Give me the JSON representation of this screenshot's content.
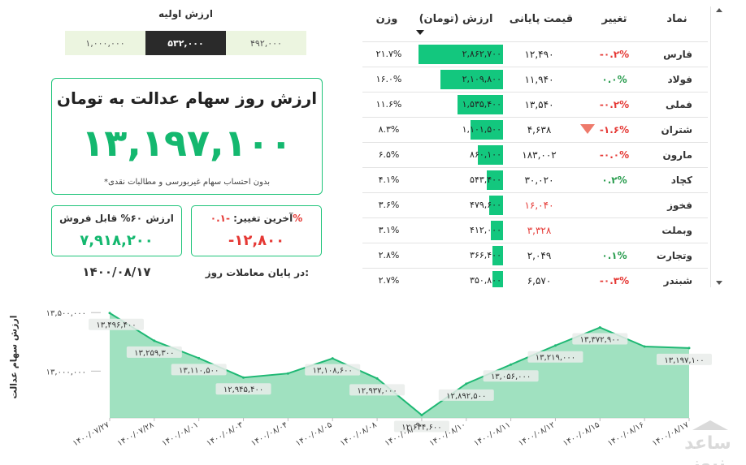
{
  "table": {
    "headers": {
      "symbol": "نماد",
      "change": "تغییر",
      "price": "قیمت پایانی",
      "value": "ارزش (تومان)",
      "weight": "وزن"
    },
    "rows": [
      {
        "symbol": "فارس",
        "change": "-۰.۲%",
        "change_dir": "neg",
        "price": "۱۲,۴۹۰",
        "price_dir": "",
        "value": "۲,۸۶۲,۷۰۰",
        "value_num": 2862700,
        "weight": "۲۱.۷%"
      },
      {
        "symbol": "فولاد",
        "change": "۰.۰%",
        "change_dir": "pos",
        "price": "۱۱,۹۴۰",
        "price_dir": "",
        "value": "۲,۱۰۹,۸۰۰",
        "value_num": 2109800,
        "weight": "۱۶.۰%"
      },
      {
        "symbol": "فملی",
        "change": "-۰.۲%",
        "change_dir": "neg",
        "price": "۱۳,۵۴۰",
        "price_dir": "",
        "value": "۱,۵۳۵,۴۰۰",
        "value_num": 1535400,
        "weight": "۱۱.۶%"
      },
      {
        "symbol": "شتران",
        "change": "-۱.۶%",
        "change_dir": "neg",
        "price": "۴,۶۳۸",
        "price_dir": "",
        "value": "۱,۱۰۱,۵۰۰",
        "value_num": 1101500,
        "weight": "۸.۳%",
        "marker": "down"
      },
      {
        "symbol": "مارون",
        "change": "-۰.۰%",
        "change_dir": "neg",
        "price": "۱۸۳,۰۰۲",
        "price_dir": "",
        "value": "۸۶۰,۱۰۰",
        "value_num": 860100,
        "weight": "۶.۵%"
      },
      {
        "symbol": "کچاد",
        "change": "۰.۲%",
        "change_dir": "pos",
        "price": "۳۰,۰۲۰",
        "price_dir": "",
        "value": "۵۴۳,۴۰۰",
        "value_num": 543400,
        "weight": "۴.۱%"
      },
      {
        "symbol": "فخوز",
        "change": "",
        "change_dir": "",
        "price": "۱۶,۰۴۰",
        "price_dir": "neg",
        "value": "۴۷۹,۶۰۰",
        "value_num": 479600,
        "weight": "۳.۶%"
      },
      {
        "symbol": "وبملت",
        "change": "",
        "change_dir": "",
        "price": "۳,۳۲۸",
        "price_dir": "neg",
        "value": "۴۱۲,۰۰۰",
        "value_num": 412000,
        "weight": "۳.۱%"
      },
      {
        "symbol": "وتجارت",
        "change": "۰.۱%",
        "change_dir": "pos",
        "price": "۲,۰۴۹",
        "price_dir": "",
        "value": "۳۶۶,۴۰۰",
        "value_num": 366400,
        "weight": "۲.۸%"
      },
      {
        "symbol": "شبندر",
        "change": "-۰.۳%",
        "change_dir": "neg",
        "price": "۶,۵۷۰",
        "price_dir": "",
        "value": "۳۵۰,۸۰۰",
        "value_num": 350800,
        "weight": "۲.۷%"
      }
    ]
  },
  "initial": {
    "title": "ارزش اولیه",
    "options": [
      "۱,۰۰۰,۰۰۰",
      "۵۳۲,۰۰۰",
      "۴۹۲,۰۰۰"
    ],
    "selected_index": 1
  },
  "summary": {
    "title": "ارزش روز سهام عدالت به تومان",
    "value": "۱۳,۱۹۷,۱۰۰",
    "note": "*بدون احتساب سهام غیربورسی و مطالبات نقدی",
    "sellable_label": "ارزش ۶۰% قابل فروش",
    "sellable_value": "۷,۹۱۸,۲۰۰",
    "last_change_label": "آخرین تغییر:",
    "last_change_pct": "-۰.۱%",
    "last_change_value": "-۱۲,۸۰۰",
    "date_label": "در پایان معاملات روز:",
    "date_value": "۱۴۰۰/۰۸/۱۷"
  },
  "chart_data": {
    "type": "area",
    "ylabel": "ارزش سهام عدالت",
    "ylim": [
      12600000,
      13550000
    ],
    "yticks": [
      13500000,
      13000000
    ],
    "ytick_labels": [
      "۱۳,۵۰۰,۰۰۰",
      "۱۳,۰۰۰,۰۰۰"
    ],
    "x": [
      "۱۴۰۰/۰۷/۲۷",
      "۱۴۰۰/۰۷/۲۸",
      "۱۴۰۰/۰۸/۰۱",
      "۱۴۰۰/۰۸/۰۳",
      "۱۴۰۰/۰۸/۰۴",
      "۱۴۰۰/۰۸/۰۵",
      "۱۴۰۰/۰۸/۰۸",
      "۱۴۰۰/۰۸/۰۹",
      "۱۴۰۰/۰۸/۱۰",
      "۱۴۰۰/۰۸/۱۱",
      "۱۴۰۰/۰۸/۱۲",
      "۱۴۰۰/۰۸/۱۵",
      "۱۴۰۰/۰۸/۱۶",
      "۱۴۰۰/۰۸/۱۷"
    ],
    "values": [
      13496400,
      13259300,
      13110500,
      12945400,
      12980000,
      13108600,
      12937000,
      12624600,
      12892500,
      13056000,
      13219000,
      13372900,
      13210000,
      13197100
    ],
    "data_labels": [
      "۱۳,۴۹۶,۴۰۰",
      "۱۳,۲۵۹,۳۰۰",
      "۱۳,۱۱۰,۵۰۰",
      "۱۲,۹۴۵,۴۰۰",
      "",
      "۱۳,۱۰۸,۶۰۰",
      "۱۲,۹۳۷,۰۰۰",
      "۱۲,۶۲۴,۶۰۰",
      "۱۲,۸۹۲,۵۰۰",
      "۱۳,۰۵۶,۰۰۰",
      "۱۳,۲۱۹,۰۰۰",
      "۱۳,۳۷۲,۹۰۰",
      "",
      "۱۳,۱۹۷,۱۰۰"
    ],
    "grid": false,
    "colors": {
      "fill": "#8fdcb5",
      "line": "#1fb874",
      "label_bg": "#e9ecea"
    }
  },
  "watermark": {
    "text": "ساعد نیوز"
  }
}
